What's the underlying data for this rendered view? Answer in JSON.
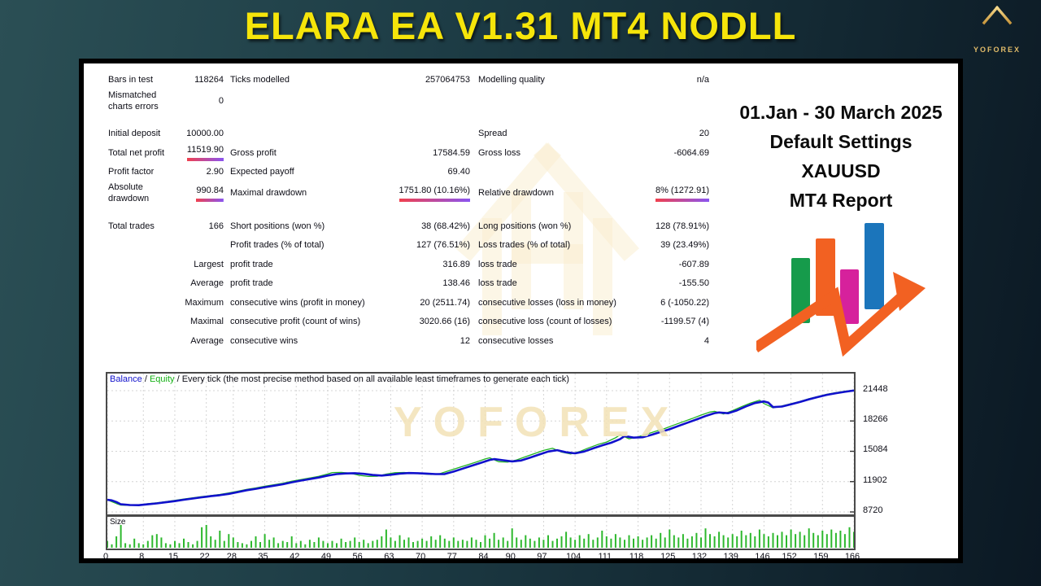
{
  "page": {
    "title": "ELARA EA V1.31 MT4 NODLL"
  },
  "brand": {
    "name": "YOFOREX"
  },
  "promo": {
    "lines": [
      "01.Jan - 30 March 2025",
      "Default Settings",
      "XAUUSD",
      "MT4 Report"
    ]
  },
  "colors": {
    "title_yellow": "#f6e50a",
    "underline_gradient": [
      "#f0404e",
      "#8a55f0"
    ],
    "balance_line": "#1111cc",
    "equity_line": "#22b422",
    "size_bars": "#2db82d",
    "graphic_green": "#169b4b",
    "graphic_orange": "#f26122",
    "graphic_magenta": "#d6219c",
    "graphic_blue": "#1b75bb",
    "logo_gold": "#e2bc6a"
  },
  "report": {
    "rows": [
      {
        "cells": [
          "Bars in test",
          "118264",
          "Ticks modelled",
          "257064753",
          "Modelling quality",
          "n/a"
        ]
      },
      {
        "cells": [
          "Mismatched charts errors",
          "0",
          "",
          "",
          "",
          ""
        ]
      },
      {
        "gap": true
      },
      {
        "cells": [
          "Initial deposit",
          "10000.00",
          "",
          "",
          "Spread",
          "20"
        ]
      },
      {
        "cells": [
          "Total net profit",
          "11519.90",
          "Gross profit",
          "17584.59",
          "Gross loss",
          "-6064.69"
        ],
        "underline": [
          1
        ]
      },
      {
        "cells": [
          "Profit factor",
          "2.90",
          "Expected payoff",
          "69.40",
          "",
          ""
        ]
      },
      {
        "cells": [
          "Absolute drawdown",
          "990.84",
          "Maximal drawdown",
          "1751.80 (10.16%)",
          "Relative drawdown",
          "8% (1272.91)"
        ],
        "underline": [
          1,
          3,
          5
        ]
      },
      {
        "gap": true
      },
      {
        "cells": [
          "Total trades",
          "166",
          "Short positions (won %)",
          "38 (68.42%)",
          "Long positions (won %)",
          "128 (78.91%)"
        ]
      },
      {
        "cells": [
          "",
          "",
          "Profit trades (% of total)",
          "127 (76.51%)",
          "Loss trades (% of total)",
          "39 (23.49%)"
        ]
      },
      {
        "cells": [
          "",
          "Largest",
          "profit trade",
          "316.89",
          "loss trade",
          "-607.89"
        ]
      },
      {
        "cells": [
          "",
          "Average",
          "profit trade",
          "138.46",
          "loss trade",
          "-155.50"
        ]
      },
      {
        "cells": [
          "",
          "Maximum",
          "consecutive wins (profit in money)",
          "20 (2511.74)",
          "consecutive losses (loss in money)",
          "6 (-1050.22)"
        ]
      },
      {
        "cells": [
          "",
          "Maximal",
          "consecutive profit (count of wins)",
          "3020.66 (16)",
          "consecutive loss (count of losses)",
          "-1199.57 (4)"
        ]
      },
      {
        "cells": [
          "",
          "Average",
          "consecutive wins",
          "12",
          "consecutive losses",
          "4"
        ]
      }
    ]
  },
  "chart_data": {
    "type": "line",
    "legend": {
      "balance_label": "Balance",
      "sep1": " / ",
      "equity_label": "Equity",
      "sep2": " / ",
      "description": "Every tick (the most precise method based on all available least timeframes to generate each tick)"
    },
    "xlim": [
      0,
      166
    ],
    "ylim": [
      8464,
      23240
    ],
    "x_ticks": [
      0,
      8,
      15,
      22,
      28,
      35,
      42,
      49,
      56,
      63,
      70,
      77,
      84,
      90,
      97,
      104,
      111,
      118,
      125,
      132,
      139,
      146,
      152,
      159,
      166
    ],
    "y_ticks": [
      21448,
      18266,
      15084,
      11902,
      8720
    ],
    "grid": true,
    "series": [
      {
        "name": "Equity",
        "color": "#22b422",
        "width": 1.3,
        "points": [
          [
            0,
            10000
          ],
          [
            1,
            9800
          ],
          [
            2,
            9600
          ],
          [
            3,
            9440
          ],
          [
            5,
            9400
          ],
          [
            7,
            9460
          ],
          [
            9,
            9580
          ],
          [
            11,
            9680
          ],
          [
            13,
            9800
          ],
          [
            15,
            9930
          ],
          [
            17,
            10070
          ],
          [
            19,
            10200
          ],
          [
            21,
            10330
          ],
          [
            23,
            10440
          ],
          [
            25,
            10560
          ],
          [
            27,
            10710
          ],
          [
            29,
            10900
          ],
          [
            31,
            11090
          ],
          [
            33,
            11240
          ],
          [
            35,
            11420
          ],
          [
            37,
            11570
          ],
          [
            39,
            11730
          ],
          [
            41,
            11940
          ],
          [
            43,
            12110
          ],
          [
            45,
            12280
          ],
          [
            47,
            12450
          ],
          [
            49,
            12700
          ],
          [
            50,
            12850
          ],
          [
            52,
            12870
          ],
          [
            54,
            12790
          ],
          [
            56,
            12560
          ],
          [
            58,
            12440
          ],
          [
            60,
            12470
          ],
          [
            62,
            12690
          ],
          [
            64,
            12840
          ],
          [
            66,
            12860
          ],
          [
            68,
            12790
          ],
          [
            70,
            12720
          ],
          [
            72,
            12650
          ],
          [
            74,
            12740
          ],
          [
            76,
            13060
          ],
          [
            78,
            13360
          ],
          [
            80,
            13660
          ],
          [
            82,
            13960
          ],
          [
            84,
            14280
          ],
          [
            85,
            14400
          ],
          [
            87,
            13990
          ],
          [
            89,
            13960
          ],
          [
            91,
            14180
          ],
          [
            93,
            14520
          ],
          [
            95,
            14850
          ],
          [
            97,
            15180
          ],
          [
            99,
            15400
          ],
          [
            101,
            15000
          ],
          [
            103,
            14800
          ],
          [
            105,
            15060
          ],
          [
            107,
            15440
          ],
          [
            109,
            15780
          ],
          [
            111,
            16060
          ],
          [
            113,
            16500
          ],
          [
            114,
            16820
          ],
          [
            116,
            16400
          ],
          [
            118,
            16600
          ],
          [
            120,
            16900
          ],
          [
            122,
            17200
          ],
          [
            124,
            17480
          ],
          [
            126,
            17840
          ],
          [
            128,
            18180
          ],
          [
            130,
            18520
          ],
          [
            132,
            18880
          ],
          [
            134,
            19200
          ],
          [
            135,
            19280
          ],
          [
            137,
            19000
          ],
          [
            139,
            19350
          ],
          [
            141,
            19760
          ],
          [
            143,
            20150
          ],
          [
            145,
            20450
          ],
          [
            146,
            20100
          ],
          [
            148,
            19640
          ],
          [
            150,
            19840
          ],
          [
            152,
            20080
          ],
          [
            154,
            20320
          ],
          [
            156,
            20600
          ],
          [
            158,
            20840
          ],
          [
            160,
            21070
          ],
          [
            162,
            21240
          ],
          [
            164,
            21390
          ],
          [
            166,
            21500
          ]
        ]
      },
      {
        "name": "Balance",
        "color": "#1111cc",
        "width": 2.6,
        "points": [
          [
            0,
            10000
          ],
          [
            1,
            9930
          ],
          [
            2,
            9760
          ],
          [
            3,
            9520
          ],
          [
            5,
            9450
          ],
          [
            7,
            9430
          ],
          [
            9,
            9520
          ],
          [
            11,
            9620
          ],
          [
            13,
            9740
          ],
          [
            15,
            9860
          ],
          [
            17,
            10000
          ],
          [
            19,
            10130
          ],
          [
            21,
            10260
          ],
          [
            23,
            10380
          ],
          [
            25,
            10480
          ],
          [
            27,
            10620
          ],
          [
            29,
            10800
          ],
          [
            31,
            11000
          ],
          [
            33,
            11150
          ],
          [
            35,
            11320
          ],
          [
            37,
            11470
          ],
          [
            39,
            11620
          ],
          [
            41,
            11830
          ],
          [
            43,
            12010
          ],
          [
            45,
            12170
          ],
          [
            47,
            12330
          ],
          [
            49,
            12540
          ],
          [
            51,
            12690
          ],
          [
            53,
            12760
          ],
          [
            55,
            12790
          ],
          [
            57,
            12720
          ],
          [
            59,
            12600
          ],
          [
            61,
            12540
          ],
          [
            63,
            12620
          ],
          [
            65,
            12740
          ],
          [
            67,
            12800
          ],
          [
            69,
            12790
          ],
          [
            71,
            12740
          ],
          [
            73,
            12690
          ],
          [
            75,
            12700
          ],
          [
            77,
            12960
          ],
          [
            79,
            13260
          ],
          [
            81,
            13560
          ],
          [
            83,
            13860
          ],
          [
            85,
            14180
          ],
          [
            86,
            14260
          ],
          [
            88,
            14140
          ],
          [
            90,
            14020
          ],
          [
            92,
            14120
          ],
          [
            94,
            14420
          ],
          [
            96,
            14740
          ],
          [
            98,
            15060
          ],
          [
            100,
            15200
          ],
          [
            102,
            14980
          ],
          [
            104,
            14870
          ],
          [
            106,
            15060
          ],
          [
            108,
            15390
          ],
          [
            110,
            15700
          ],
          [
            112,
            15980
          ],
          [
            114,
            16360
          ],
          [
            115,
            16680
          ],
          [
            117,
            16520
          ],
          [
            119,
            16560
          ],
          [
            121,
            16820
          ],
          [
            123,
            17120
          ],
          [
            125,
            17400
          ],
          [
            127,
            17750
          ],
          [
            129,
            18090
          ],
          [
            131,
            18420
          ],
          [
            133,
            18780
          ],
          [
            135,
            19090
          ],
          [
            136,
            19160
          ],
          [
            138,
            19080
          ],
          [
            140,
            19380
          ],
          [
            142,
            19800
          ],
          [
            144,
            20150
          ],
          [
            146,
            20320
          ],
          [
            147,
            20180
          ],
          [
            148,
            19720
          ],
          [
            150,
            19780
          ],
          [
            152,
            20020
          ],
          [
            154,
            20260
          ],
          [
            156,
            20540
          ],
          [
            158,
            20780
          ],
          [
            160,
            21010
          ],
          [
            162,
            21180
          ],
          [
            164,
            21330
          ],
          [
            166,
            21460
          ]
        ]
      }
    ],
    "size_panel": {
      "label": "Size",
      "bar_color": "#2db82d",
      "values": [
        0.3,
        0.15,
        0.5,
        1,
        0.2,
        0.15,
        0.4,
        0.2,
        0.15,
        0.3,
        0.55,
        0.6,
        0.45,
        0.2,
        0.15,
        0.3,
        0.2,
        0.4,
        0.25,
        0.15,
        0.3,
        0.9,
        1,
        0.5,
        0.35,
        0.75,
        0.3,
        0.6,
        0.45,
        0.25,
        0.2,
        0.15,
        0.3,
        0.5,
        0.25,
        0.6,
        0.35,
        0.45,
        0.2,
        0.3,
        0.25,
        0.5,
        0.2,
        0.3,
        0.15,
        0.35,
        0.25,
        0.45,
        0.3,
        0.2,
        0.3,
        0.2,
        0.4,
        0.25,
        0.3,
        0.45,
        0.25,
        0.35,
        0.2,
        0.3,
        0.35,
        0.5,
        0.8,
        0.45,
        0.3,
        0.55,
        0.35,
        0.45,
        0.25,
        0.3,
        0.4,
        0.3,
        0.5,
        0.35,
        0.55,
        0.4,
        0.3,
        0.45,
        0.3,
        0.35,
        0.3,
        0.45,
        0.35,
        0.25,
        0.55,
        0.4,
        0.65,
        0.35,
        0.45,
        0.3,
        0.85,
        0.45,
        0.35,
        0.55,
        0.4,
        0.3,
        0.45,
        0.35,
        0.55,
        0.3,
        0.4,
        0.5,
        0.7,
        0.45,
        0.35,
        0.55,
        0.4,
        0.6,
        0.35,
        0.45,
        0.75,
        0.5,
        0.4,
        0.6,
        0.45,
        0.35,
        0.55,
        0.4,
        0.5,
        0.35,
        0.45,
        0.55,
        0.4,
        0.65,
        0.45,
        0.8,
        0.55,
        0.45,
        0.6,
        0.4,
        0.5,
        0.65,
        0.45,
        0.85,
        0.6,
        0.5,
        0.7,
        0.55,
        0.45,
        0.6,
        0.5,
        0.75,
        0.55,
        0.65,
        0.5,
        0.8,
        0.6,
        0.5,
        0.65,
        0.55,
        0.7,
        0.55,
        0.8,
        0.6,
        0.7,
        0.55,
        0.85,
        0.65,
        0.55,
        0.75,
        0.6,
        0.8,
        0.65,
        0.75,
        0.6,
        0.9,
        0.7
      ]
    }
  }
}
